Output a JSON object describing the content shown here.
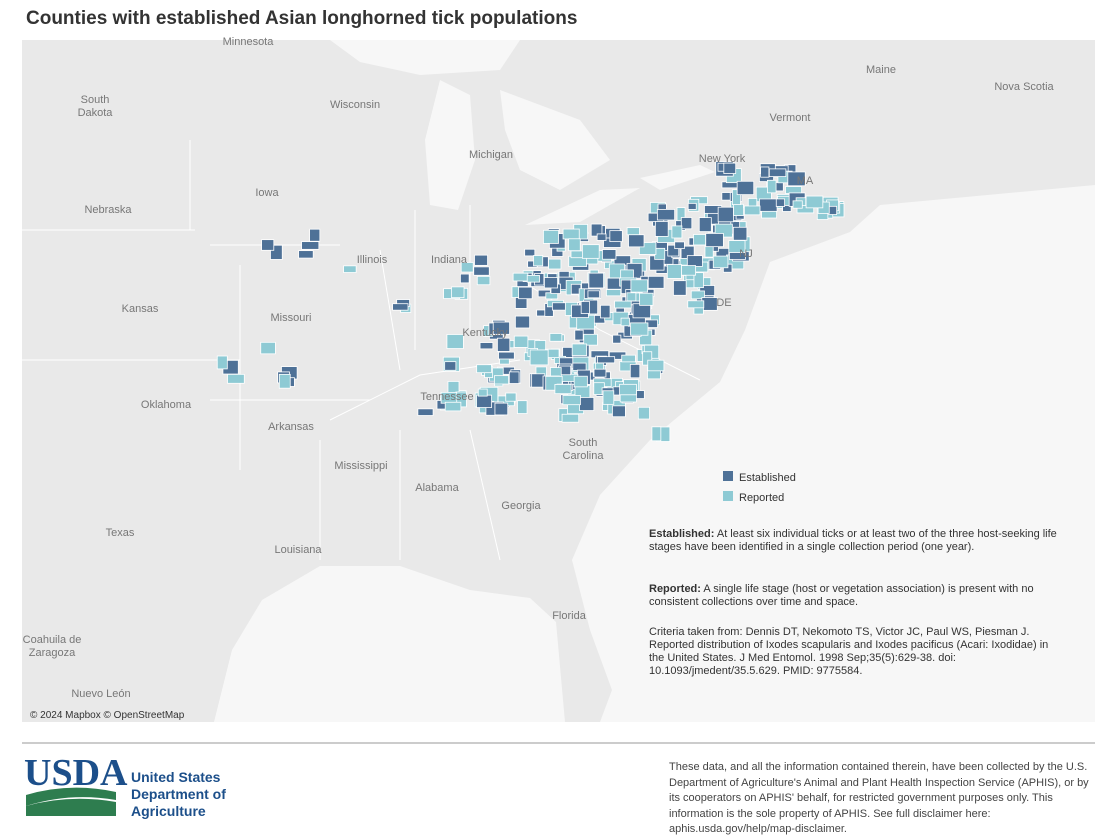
{
  "header": {
    "title": "Counties with established Asian longhorned tick populations"
  },
  "map": {
    "labels": [
      {
        "lines": [
          "Minnesota"
        ]
      },
      {
        "lines": [
          "South",
          "Dakota"
        ]
      },
      {
        "lines": [
          "Wisconsin"
        ]
      },
      {
        "lines": [
          "Michigan"
        ]
      },
      {
        "lines": [
          "Maine"
        ]
      },
      {
        "lines": [
          "Nova Scotia"
        ]
      },
      {
        "lines": [
          "Vermont"
        ]
      },
      {
        "lines": [
          "New York"
        ]
      },
      {
        "lines": [
          "MA"
        ]
      },
      {
        "lines": [
          "Nebraska"
        ]
      },
      {
        "lines": [
          "Iowa"
        ]
      },
      {
        "lines": [
          "Illinois"
        ]
      },
      {
        "lines": [
          "Indiana"
        ]
      },
      {
        "lines": [
          "Kansas"
        ]
      },
      {
        "lines": [
          "Missouri"
        ]
      },
      {
        "lines": [
          "Kentucky"
        ]
      },
      {
        "lines": [
          "NJ"
        ]
      },
      {
        "lines": [
          "DE"
        ]
      },
      {
        "lines": [
          "Oklahoma"
        ]
      },
      {
        "lines": [
          "Arkansas"
        ]
      },
      {
        "lines": [
          "Tennessee"
        ]
      },
      {
        "lines": [
          "South",
          "Carolina"
        ]
      },
      {
        "lines": [
          "Mississippi"
        ]
      },
      {
        "lines": [
          "Alabama"
        ]
      },
      {
        "lines": [
          "Georgia"
        ]
      },
      {
        "lines": [
          "Texas"
        ]
      },
      {
        "lines": [
          "Louisiana"
        ]
      },
      {
        "lines": [
          "Florida"
        ]
      },
      {
        "lines": [
          "Coahuila de",
          "Zaragoza"
        ]
      },
      {
        "lines": [
          "Nuevo León"
        ]
      }
    ],
    "attribution": "© 2024 Mapbox © OpenStreetMap"
  },
  "legend": [
    {
      "label": "Established",
      "color": "#4e7197"
    },
    {
      "label": "Reported",
      "color": "#8ecad4"
    }
  ],
  "notes": {
    "established": {
      "term": "Established:",
      "text": "At least six individual ticks or at least two of the three host-seeking life stages have been identified in a single collection period (one year)."
    },
    "reported": {
      "term": "Reported:",
      "text": "A single life stage (host or vegetation association) is present with no consistent collections over time and space."
    },
    "criteria": "Criteria taken from: Dennis DT, Nekomoto TS, Victor JC, Paul WS, Piesman J. Reported distribution of Ixodes scapularis and Ixodes pacificus (Acari: Ixodidae) in the United States. J Med Entomol. 1998 Sep;35(5):629-38. doi: 10.1093/jmedent/35.5.629. PMID: 9775584."
  },
  "footer": {
    "logo": "USDA",
    "agency": [
      "United States",
      "Department of",
      "Agriculture"
    ],
    "disclaimer": "These data, and all the information contained therein, have been collected by the U.S. Department of Agriculture's Animal and Plant Health Inspection Service (APHIS), or by its cooperators on APHIS' behalf, for restricted government purposes only. This information is the sole property of APHIS. See full disclaimer here: aphis.usda.gov/help/map-disclaimer."
  }
}
